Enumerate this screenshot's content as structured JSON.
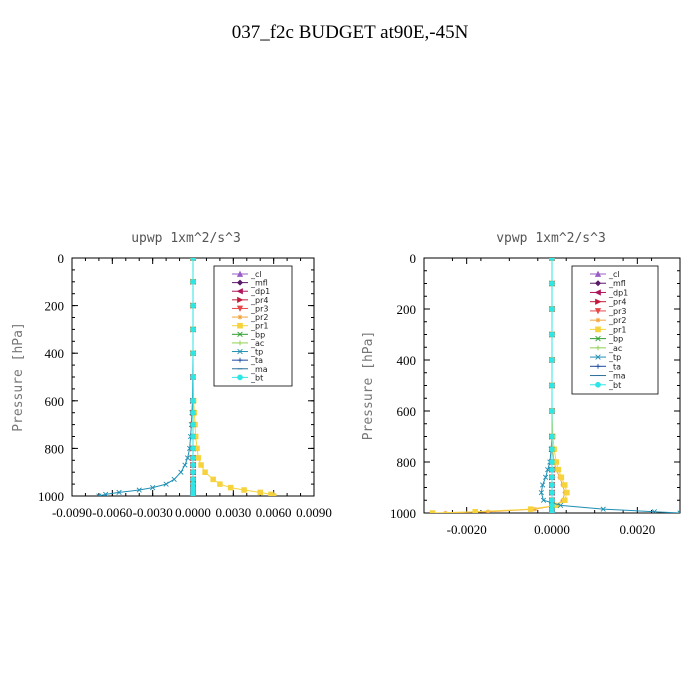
{
  "page": {
    "title": "037_f2c  BUDGET at90E,-45N"
  },
  "chart_data": [
    {
      "type": "line",
      "title": "upwp   1xm^2/s^3",
      "ylabel": "Pressure [hPa]",
      "xlim": [
        -0.009,
        0.009
      ],
      "ylim": [
        1000,
        0
      ],
      "xticks": [
        -0.009,
        -0.006,
        -0.003,
        0.0,
        0.003,
        0.006,
        0.009
      ],
      "xtick_labels": [
        "-0.0090",
        "-0.0060",
        "-0.0030",
        "0.0000",
        "0.0030",
        "0.0060",
        "0.0090"
      ],
      "yticks": [
        0,
        200,
        400,
        600,
        800,
        1000
      ],
      "ytick_labels": [
        "0",
        "200",
        "400",
        "600",
        "800",
        "1000"
      ],
      "grid": false,
      "legend_position": "top-right",
      "y": [
        0,
        100,
        200,
        300,
        400,
        500,
        600,
        650,
        700,
        750,
        800,
        840,
        870,
        900,
        930,
        950,
        965,
        975,
        985,
        993,
        1000
      ],
      "series": [
        {
          "name": "_cl",
          "color": "#9a5cc6",
          "marker": "triangle",
          "values": [
            0,
            0,
            0,
            0,
            0,
            0,
            0,
            0,
            0,
            0,
            0,
            0,
            0,
            0,
            0,
            0,
            0,
            0,
            0,
            0,
            0
          ]
        },
        {
          "name": "_mfl",
          "color": "#5a1a6a",
          "marker": "diamond",
          "values": [
            0,
            0,
            0,
            0,
            0,
            0,
            0,
            0,
            0,
            0,
            0,
            0,
            0,
            0,
            0,
            0,
            0,
            0,
            0,
            0,
            0
          ]
        },
        {
          "name": "_dp1",
          "color": "#b0145a",
          "marker": "triangle-left",
          "values": [
            0,
            0,
            0,
            0,
            0,
            0,
            0,
            0,
            0,
            0,
            0,
            0,
            0,
            0,
            0,
            0,
            0,
            0,
            0,
            0,
            0
          ]
        },
        {
          "name": "_pr4",
          "color": "#c21a3a",
          "marker": "triangle-right",
          "values": [
            0,
            0,
            0,
            0,
            0,
            0,
            0,
            0,
            0,
            0,
            0,
            0,
            0,
            0,
            0,
            0,
            0,
            0,
            0,
            0,
            0
          ]
        },
        {
          "name": "_pr3",
          "color": "#e8474a",
          "marker": "triangle-down",
          "values": [
            0,
            0,
            0,
            0,
            0,
            0,
            0,
            0,
            0,
            0,
            0,
            0,
            0,
            0,
            0,
            0,
            0,
            0,
            0,
            0,
            0
          ]
        },
        {
          "name": "_pr2",
          "color": "#f2a23a",
          "marker": "star",
          "values": [
            0,
            0,
            0,
            0,
            0,
            0,
            0,
            0,
            0,
            0,
            0,
            0,
            0,
            0,
            0,
            0,
            0,
            0,
            0,
            0,
            0
          ]
        },
        {
          "name": "_pr1",
          "color": "#f6d33c",
          "marker": "square",
          "values": [
            0,
            0,
            0,
            0,
            0,
            2e-05,
            5e-05,
            0.0001,
            0.00015,
            0.0002,
            0.0003,
            0.0004,
            0.0006,
            0.0009,
            0.0015,
            0.002,
            0.0028,
            0.0038,
            0.005,
            0.0058,
            0.006
          ]
        },
        {
          "name": "_bp",
          "color": "#2ca02c",
          "marker": "x",
          "values": [
            0,
            0,
            0,
            0,
            0,
            0,
            0,
            0,
            0,
            0,
            0,
            0,
            0,
            0,
            0,
            0,
            0,
            0,
            0,
            0,
            0
          ]
        },
        {
          "name": "_ac",
          "color": "#8fd14f",
          "marker": "plus",
          "values": [
            0,
            0,
            0,
            0,
            0,
            0,
            0,
            0,
            0,
            0,
            0,
            0,
            0,
            0,
            0,
            0,
            0,
            0,
            0,
            0,
            0
          ]
        },
        {
          "name": "_tp",
          "color": "#1f8fb4",
          "marker": "x",
          "values": [
            0,
            0,
            0,
            0,
            0,
            -2e-05,
            -4e-05,
            -8e-05,
            -0.00012,
            -0.00018,
            -0.00025,
            -0.0004,
            -0.0006,
            -0.0009,
            -0.0014,
            -0.002,
            -0.003,
            -0.004,
            -0.0055,
            -0.0065,
            -0.007
          ]
        },
        {
          "name": "_ta",
          "color": "#1a4aa0",
          "marker": "plus",
          "values": [
            0,
            0,
            0,
            0,
            0,
            0,
            0,
            0,
            0,
            0,
            0,
            0,
            0,
            0,
            0,
            0,
            0,
            0,
            0,
            0,
            0
          ]
        },
        {
          "name": "_ma",
          "color": "#2a6f9a",
          "marker": "dash",
          "values": [
            0,
            0,
            0,
            0,
            0,
            0,
            0,
            0,
            0,
            0,
            0,
            0,
            0,
            0,
            0,
            0,
            0,
            0,
            0,
            0,
            0
          ]
        },
        {
          "name": "_bt",
          "color": "#2ee6e6",
          "marker": "circle",
          "values": [
            0,
            0,
            0,
            0,
            0,
            0,
            0,
            0,
            0,
            0,
            0,
            0,
            0,
            0,
            0,
            0,
            0,
            0,
            0,
            0,
            0
          ]
        }
      ]
    },
    {
      "type": "line",
      "title": "vpwp   1xm^2/s^3",
      "ylabel": "Pressure [hPa]",
      "xlim": [
        -0.003,
        0.003
      ],
      "ylim": [
        1000,
        0
      ],
      "xticks": [
        -0.002,
        0.0,
        0.002
      ],
      "xtick_labels": [
        "-0.0020",
        "0.0000",
        "0.0020"
      ],
      "yticks": [
        0,
        200,
        400,
        600,
        800,
        1000
      ],
      "ytick_labels": [
        "0",
        "200",
        "400",
        "600",
        "800",
        "1000"
      ],
      "grid": false,
      "legend_position": "top-right",
      "y": [
        0,
        100,
        200,
        300,
        400,
        500,
        600,
        700,
        750,
        800,
        830,
        860,
        890,
        920,
        950,
        970,
        985,
        995,
        1000
      ],
      "series": [
        {
          "name": "_cl",
          "color": "#9a5cc6",
          "marker": "triangle",
          "values": [
            0,
            0,
            0,
            0,
            0,
            0,
            0,
            0,
            0,
            0,
            0,
            0,
            0,
            0,
            0,
            0,
            0,
            0,
            0
          ]
        },
        {
          "name": "_mfl",
          "color": "#5a1a6a",
          "marker": "diamond",
          "values": [
            0,
            0,
            0,
            0,
            0,
            0,
            0,
            0,
            0,
            0,
            0,
            0,
            0,
            0,
            0,
            0,
            0,
            0,
            0
          ]
        },
        {
          "name": "_dp1",
          "color": "#b0145a",
          "marker": "triangle-left",
          "values": [
            0,
            0,
            0,
            0,
            0,
            0,
            0,
            0,
            0,
            0,
            0,
            0,
            0,
            0,
            0,
            0,
            0,
            0,
            0
          ]
        },
        {
          "name": "_pr4",
          "color": "#c21a3a",
          "marker": "triangle-right",
          "values": [
            0,
            0,
            0,
            0,
            0,
            0,
            0,
            0,
            0,
            0,
            0,
            0,
            0,
            0,
            0,
            0,
            0,
            0,
            0
          ]
        },
        {
          "name": "_pr3",
          "color": "#e8474a",
          "marker": "triangle-down",
          "values": [
            0,
            0,
            0,
            0,
            0,
            0,
            0,
            0,
            0,
            0,
            0,
            0,
            0,
            0,
            0,
            0,
            0,
            0,
            0
          ]
        },
        {
          "name": "_pr2",
          "color": "#f2a23a",
          "marker": "star",
          "values": [
            0,
            0,
            0,
            0,
            0,
            0,
            0,
            0,
            1e-05,
            5e-05,
            0.0001,
            0.00018,
            0.00025,
            0.0003,
            0.00025,
            0.0001,
            -0.0004,
            -0.0015,
            -0.0025
          ]
        },
        {
          "name": "_pr1",
          "color": "#f6d33c",
          "marker": "square",
          "values": [
            0,
            0,
            0,
            0,
            0,
            0,
            0,
            2e-05,
            5e-05,
            0.0001,
            0.00015,
            0.00022,
            0.0003,
            0.00035,
            0.0003,
            0.0001,
            -0.0005,
            -0.0018,
            -0.0028
          ]
        },
        {
          "name": "_bp",
          "color": "#2ca02c",
          "marker": "x",
          "values": [
            0,
            0,
            0,
            0,
            0,
            0,
            0,
            0,
            0,
            0,
            0,
            0,
            0,
            0,
            0,
            0,
            0,
            0,
            0
          ]
        },
        {
          "name": "_ac",
          "color": "#8fd14f",
          "marker": "plus",
          "values": [
            0,
            0,
            0,
            0,
            0,
            0,
            0,
            0,
            0,
            0,
            0,
            0,
            0,
            0,
            0,
            0,
            0,
            0,
            0
          ]
        },
        {
          "name": "_tp",
          "color": "#1f8fb4",
          "marker": "x",
          "values": [
            0,
            0,
            0,
            0,
            0,
            0,
            0,
            0,
            -2e-05,
            -5e-05,
            -0.0001,
            -0.00015,
            -0.00022,
            -0.00025,
            -0.0002,
            0.0002,
            0.0012,
            0.0024,
            0.003
          ]
        },
        {
          "name": "_ta",
          "color": "#1a4aa0",
          "marker": "plus",
          "values": [
            0,
            0,
            0,
            0,
            0,
            0,
            0,
            0,
            0,
            0,
            0,
            0,
            0,
            0,
            0,
            0,
            0,
            0,
            0
          ]
        },
        {
          "name": "_ma",
          "color": "#2a6f9a",
          "marker": "dash",
          "values": [
            0,
            0,
            0,
            0,
            0,
            0,
            0,
            0,
            0,
            0,
            0,
            0,
            0,
            0,
            0,
            0,
            0,
            0,
            0
          ]
        },
        {
          "name": "_bt",
          "color": "#2ee6e6",
          "marker": "circle",
          "values": [
            0,
            0,
            0,
            0,
            0,
            0,
            0,
            0,
            0,
            0,
            0,
            0,
            0,
            0,
            0,
            0,
            0,
            0,
            0
          ]
        }
      ]
    }
  ]
}
